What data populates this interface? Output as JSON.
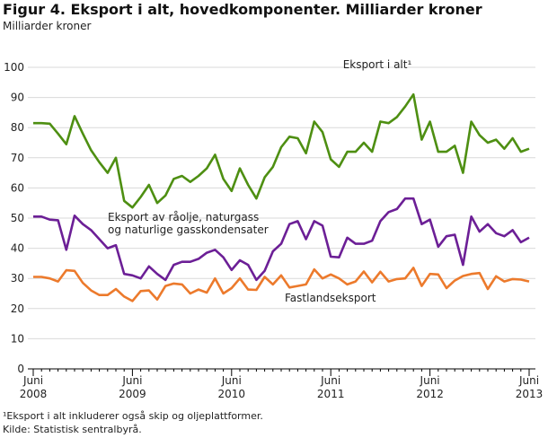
{
  "chart_data": {
    "type": "line",
    "title": "Figur 4. Eksport i alt, hovedkomponenter. Milliarder kroner",
    "y_label": "Milliarder kroner",
    "categories": [
      "Juni 2008",
      null,
      null,
      null,
      null,
      null,
      null,
      null,
      null,
      null,
      null,
      null,
      "Juni 2009",
      null,
      null,
      null,
      null,
      null,
      null,
      null,
      null,
      null,
      null,
      null,
      "Juni 2010",
      null,
      null,
      null,
      null,
      null,
      null,
      null,
      null,
      null,
      null,
      null,
      "Juni 2011",
      null,
      null,
      null,
      null,
      null,
      null,
      null,
      null,
      null,
      null,
      null,
      "Juni 2012",
      null,
      null,
      null,
      null,
      null,
      null,
      null,
      null,
      null,
      null,
      null,
      "Juni 2013"
    ],
    "series": [
      {
        "name": "Eksport i alt¹",
        "color": "#4e8f12",
        "values": [
          81.5,
          81.5,
          81.3,
          78,
          74.5,
          83.8,
          78,
          72.5,
          68.5,
          65,
          70,
          55.7,
          53.5,
          57,
          61,
          55,
          57.5,
          63,
          64,
          62,
          64,
          66.5,
          71,
          63,
          59,
          66.5,
          61,
          56.5,
          63.5,
          67,
          73.5,
          77,
          76.5,
          71.5,
          82,
          78.5,
          69.5,
          67,
          72,
          72,
          75,
          72,
          82,
          81.5,
          83.5,
          87,
          91,
          76,
          82,
          72,
          72,
          74,
          65,
          82,
          77.5,
          75,
          76,
          73,
          76.5,
          72,
          73
        ]
      },
      {
        "name": [
          "Eksport av råolje, naturgass",
          "og naturlige gasskondensater"
        ],
        "color": "#6c1f96",
        "values": [
          50.5,
          50.5,
          49.5,
          49.3,
          39.5,
          50.8,
          48,
          46,
          43,
          40,
          41,
          31.5,
          31,
          30,
          34,
          31.5,
          29.5,
          34.5,
          35.5,
          35.5,
          36.5,
          38.5,
          39.5,
          37,
          32.8,
          36,
          34.5,
          29.5,
          32.5,
          39,
          41.5,
          48,
          49,
          43,
          49,
          47.5,
          37.2,
          37,
          43.5,
          41.5,
          41.5,
          42.5,
          49,
          52,
          53,
          56.5,
          56.5,
          48,
          49.5,
          40.5,
          44,
          44.5,
          34.5,
          50.5,
          45.5,
          48,
          45,
          44,
          46,
          42,
          43.5
        ]
      },
      {
        "name": "Fastlandseksport",
        "color": "#ec7a2c",
        "values": [
          30.5,
          30.5,
          30,
          29,
          32.7,
          32.5,
          28.5,
          26,
          24.5,
          24.5,
          26.5,
          24,
          22.5,
          25.8,
          26,
          23,
          27.5,
          28.3,
          28,
          25,
          26.3,
          25.3,
          30,
          25,
          26.8,
          30,
          26.3,
          26.2,
          30.5,
          28,
          31,
          27,
          27.5,
          28,
          33,
          30,
          31.3,
          30,
          28,
          29,
          32.3,
          28.7,
          32.2,
          29,
          29.8,
          30,
          33.5,
          27.5,
          31.5,
          31.3,
          26.8,
          29.3,
          30.8,
          31.5,
          31.8,
          26.5,
          30.7,
          29,
          29.8,
          29.6,
          29
        ]
      }
    ],
    "ylim": [
      0,
      100
    ],
    "yticks": [
      0,
      10,
      20,
      30,
      40,
      50,
      60,
      70,
      80,
      90,
      100
    ],
    "grid": true,
    "footnote": "¹Eksport i alt inkluderer også skip og oljeplattformer.",
    "source": "Kilde: Statistisk sentralbyrå."
  }
}
